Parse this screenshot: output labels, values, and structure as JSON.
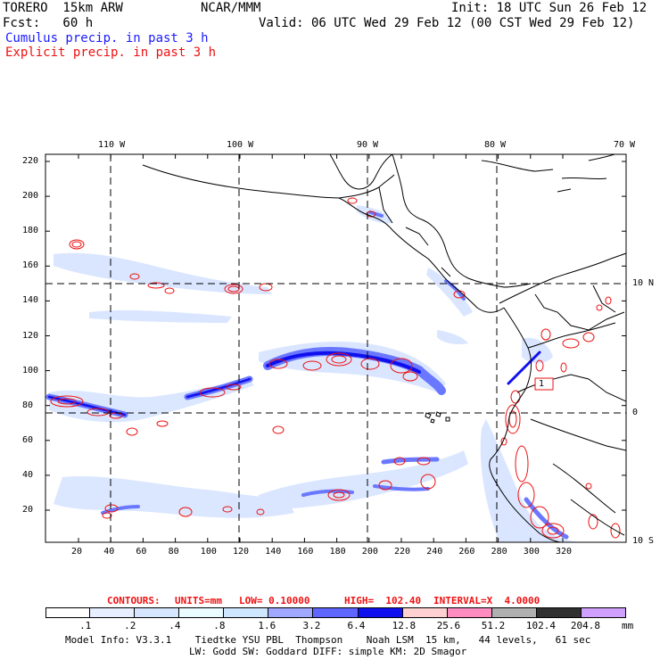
{
  "header": {
    "model_name": "TORERO  15km ARW",
    "org": "NCAR/MMM",
    "init": "Init: 18 UTC Sun 26 Feb 12",
    "fcst": "Fcst:   60 h",
    "valid": "Valid: 06 UTC Wed 29 Feb 12 (00 CST Wed 29 Feb 12)",
    "cumulus_label": "Cumulus precip. in past 3 h",
    "explicit_label": "Explicit precip. in past 3 h"
  },
  "map": {
    "lon_labels": [
      "110 W",
      "100 W",
      "90 W",
      "80 W",
      "70 W"
    ],
    "lat_labels": [
      "10 N",
      "0",
      "10 S"
    ],
    "y_ticks": [
      "220",
      "200",
      "180",
      "160",
      "140",
      "120",
      "100",
      "80",
      "60",
      "40",
      "20"
    ],
    "x_ticks": [
      "20",
      "40",
      "60",
      "80",
      "100",
      "120",
      "140",
      "160",
      "180",
      "200",
      "220",
      "240",
      "260",
      "280",
      "300",
      "320"
    ],
    "station_label": "1"
  },
  "contours_info": {
    "contours": "CONTOURS:",
    "units": "UNITS=mm",
    "low": "LOW= 0.10000",
    "high": "HIGH=  102.40",
    "interval": "INTERVAL=X  4.0000"
  },
  "colorbar": {
    "colors": [
      "#ffffff",
      "#e8f0ff",
      "#d6e6ff",
      "#eafcff",
      "#cfe6ff",
      "#a0a8ff",
      "#5f66ff",
      "#1010ee",
      "#ffd0d0",
      "#ff8cc0",
      "#b0b0b0",
      "#303030",
      "#d0a0ff"
    ],
    "labels": [
      ".1",
      ".2",
      ".4",
      ".8",
      "1.6",
      "3.2",
      "6.4",
      "12.8",
      "25.6",
      "51.2",
      "102.4",
      "204.8"
    ],
    "unit": "mm"
  },
  "footer": {
    "line1": "Model Info: V3.3.1    Tiedtke YSU PBL  Thompson    Noah LSM  15 km,   44 levels,   61 sec",
    "line2": "LW: Godd SW: Goddard DIFF: simple KM: 2D Smagor"
  },
  "colors": {
    "explicit": "#ee1111",
    "cumulus_light": "#cfe0ff",
    "cumulus_mid": "#6a78ff",
    "cumulus_dark": "#1010ee"
  }
}
